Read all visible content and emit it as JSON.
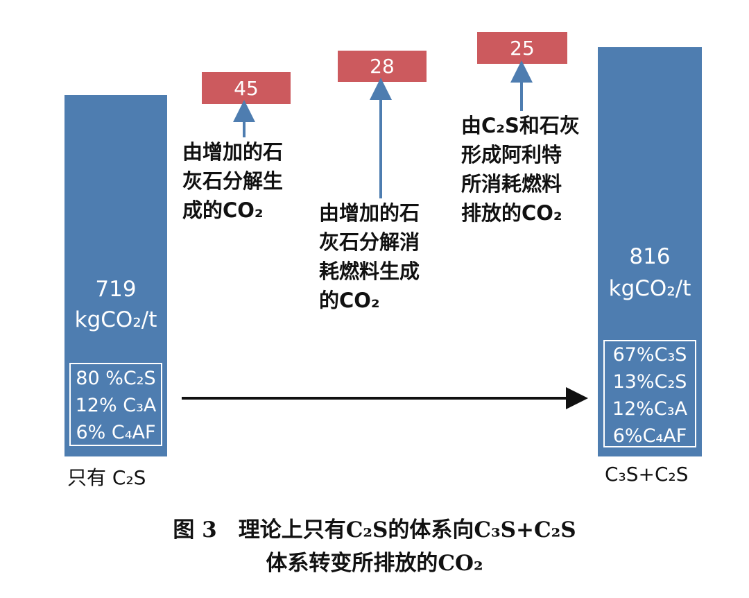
{
  "chart_data": {
    "type": "bar",
    "subtype": "waterfall",
    "unit": "kgCO₂/t",
    "categories": [
      "只有 C₂S",
      "C₃S+C₂S"
    ],
    "start": {
      "category": "只有 C₂S",
      "value": 719,
      "value_label": "719",
      "unit_label": "kgCO₂/t",
      "composition": [
        "80 %C₂S",
        "12% C₃A",
        "6% C₄AF"
      ]
    },
    "end": {
      "category": "C₃S+C₂S",
      "value": 816,
      "value_label": "816",
      "unit_label": "kgCO₂/t",
      "composition": [
        "67%C₃S",
        "13%C₂S",
        "12%C₃A",
        "6%C₄AF"
      ]
    },
    "increments": [
      {
        "value": 45,
        "label": "45",
        "description": [
          "由增加的石",
          "灰石分解生",
          "成的CO₂"
        ]
      },
      {
        "value": 28,
        "label": "28",
        "description": [
          "由增加的石",
          "灰石分解消",
          "耗燃料生成",
          "的CO₂"
        ]
      },
      {
        "value": 25,
        "label": "25",
        "description": [
          "由C₂S和石灰",
          "形成阿利特",
          "所消耗燃料",
          "排放的CO₂"
        ]
      }
    ],
    "colors": {
      "bar": "#4e7db0",
      "increment": "#cc5a5e"
    }
  },
  "caption": {
    "line1": "图 3　理论上只有C₂S的体系向C₃S+C₂S",
    "line2": "体系转变所排放的CO₂"
  }
}
